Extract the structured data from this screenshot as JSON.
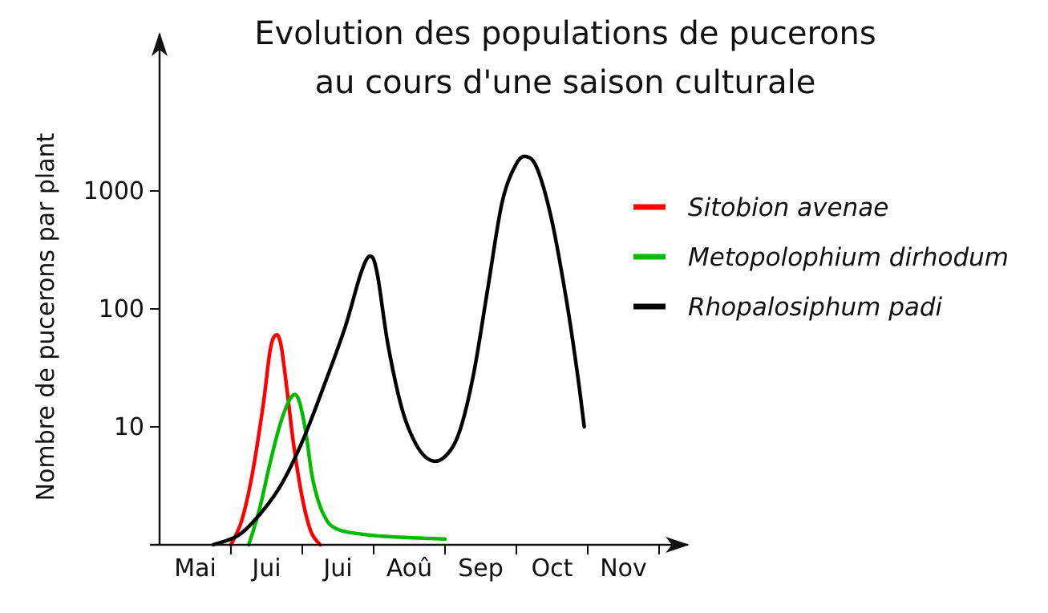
{
  "chart_data": {
    "type": "line",
    "title": [
      "Evolution des populations de pucerons",
      "au cours d'une saison culturale"
    ],
    "xlabel": "",
    "ylabel": "Nombre de pucerons par plant",
    "y_scale": "log",
    "ylim": [
      1,
      10000
    ],
    "y_ticks": [
      {
        "value": 10,
        "label": "10"
      },
      {
        "value": 100,
        "label": "100"
      },
      {
        "value": 1000,
        "label": "1000"
      }
    ],
    "x_categories": [
      "Mai",
      "Jui",
      "Jui",
      "Aoû",
      "Sep",
      "Oct",
      "Nov"
    ],
    "x_range": [
      0,
      7
    ],
    "legend_position": "right",
    "series": [
      {
        "name": "Sitobion avenae",
        "color": "#ff0000",
        "points": [
          [
            1.0,
            1.0
          ],
          [
            1.15,
            1.6
          ],
          [
            1.3,
            4.0
          ],
          [
            1.45,
            15
          ],
          [
            1.55,
            45
          ],
          [
            1.63,
            60
          ],
          [
            1.7,
            50
          ],
          [
            1.78,
            22
          ],
          [
            1.88,
            7
          ],
          [
            2.0,
            2.5
          ],
          [
            2.12,
            1.3
          ],
          [
            2.25,
            1.0
          ]
        ]
      },
      {
        "name": "Metopolophium dirhodum",
        "color": "#00bb00",
        "points": [
          [
            1.25,
            1.0
          ],
          [
            1.4,
            2.0
          ],
          [
            1.55,
            5.0
          ],
          [
            1.7,
            11
          ],
          [
            1.85,
            18
          ],
          [
            1.95,
            17
          ],
          [
            2.05,
            9
          ],
          [
            2.15,
            3.5
          ],
          [
            2.3,
            1.8
          ],
          [
            2.5,
            1.35
          ],
          [
            3.0,
            1.2
          ],
          [
            3.5,
            1.15
          ],
          [
            4.0,
            1.12
          ]
        ]
      },
      {
        "name": "Rhopalosiphum padi",
        "color": "#000000",
        "points": [
          [
            0.75,
            1.0
          ],
          [
            1.1,
            1.2
          ],
          [
            1.4,
            1.8
          ],
          [
            1.7,
            3.2
          ],
          [
            2.0,
            7.5
          ],
          [
            2.3,
            22
          ],
          [
            2.6,
            70
          ],
          [
            2.82,
            200
          ],
          [
            2.95,
            280
          ],
          [
            3.05,
            200
          ],
          [
            3.2,
            50
          ],
          [
            3.4,
            14
          ],
          [
            3.6,
            7
          ],
          [
            3.8,
            5.2
          ],
          [
            4.0,
            5.6
          ],
          [
            4.2,
            9
          ],
          [
            4.4,
            28
          ],
          [
            4.6,
            150
          ],
          [
            4.8,
            800
          ],
          [
            5.0,
            1700
          ],
          [
            5.15,
            1950
          ],
          [
            5.3,
            1500
          ],
          [
            5.5,
            550
          ],
          [
            5.7,
            120
          ],
          [
            5.85,
            30
          ],
          [
            5.95,
            10
          ]
        ]
      }
    ]
  }
}
